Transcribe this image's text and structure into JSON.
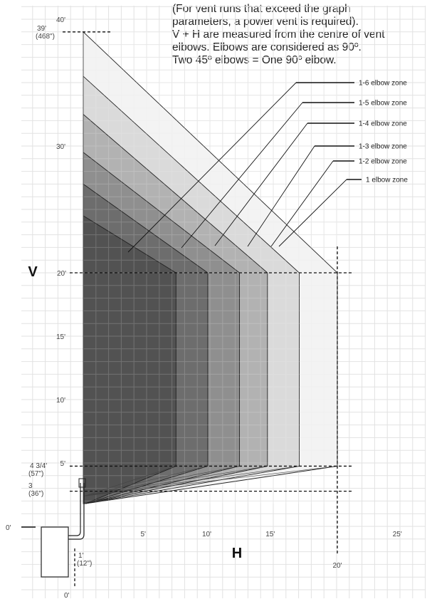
{
  "note_lines": [
    "(For vent runs that exceed the graph",
    "parameters, a power vent is required).",
    "V + H are measured from the centre of vent",
    "elbows. Elbows are considered as 90º.",
    "Two 45º elbows = One 90º elbow."
  ],
  "chart_data": {
    "type": "area",
    "title": "",
    "xlabel": "H",
    "ylabel": "V",
    "xlim": [
      0,
      25
    ],
    "ylim": [
      0,
      40
    ],
    "grid": true,
    "x_ticks": [
      {
        "value": 5,
        "label": "5'"
      },
      {
        "value": 10,
        "label": "10'"
      },
      {
        "value": 15,
        "label": "15'"
      },
      {
        "value": 25,
        "label": "25'"
      }
    ],
    "y_ticks": [
      {
        "value": 5,
        "label": "5'"
      },
      {
        "value": 10,
        "label": "10'"
      },
      {
        "value": 15,
        "label": "15'"
      },
      {
        "value": 20,
        "label": "20'"
      },
      {
        "value": 30,
        "label": "30'"
      },
      {
        "value": 40,
        "label": "40'"
      }
    ],
    "markers": {
      "v_max": {
        "value": 39,
        "label": "39'",
        "sublabel": "(468\")"
      },
      "v_20": {
        "value": 20,
        "label": "20'"
      },
      "v_min_long": {
        "value": 4.75,
        "label": "4 3/4'",
        "sublabel": "(57\")"
      },
      "v_min": {
        "value": 3,
        "label": "3",
        "sublabel": "(36\")"
      },
      "h_max": {
        "value": 20,
        "label": "20'"
      },
      "h_min": {
        "value": 1,
        "label": "1'",
        "sublabel": "(12\")"
      },
      "origin_v": {
        "label": "0'"
      },
      "origin_h": {
        "label": "0'"
      }
    },
    "zones": [
      {
        "name": "1 elbow zone",
        "elbows": 1,
        "v_top": 39,
        "h_max": 20,
        "color": "#efefef"
      },
      {
        "name": "1-2 elbow zone",
        "elbows": 2,
        "v_top": 35.5,
        "h_max": 17,
        "color": "#d2d2d2"
      },
      {
        "name": "1-3 elbow zone",
        "elbows": 3,
        "v_top": 32.5,
        "h_max": 14.5,
        "color": "#a6a6a6"
      },
      {
        "name": "1-4 elbow zone",
        "elbows": 4,
        "v_top": 29.5,
        "h_max": 12.3,
        "color": "#858585"
      },
      {
        "name": "1-5 elbow zone",
        "elbows": 5,
        "v_top": 27,
        "h_max": 9.8,
        "color": "#646464"
      },
      {
        "name": "1-6 elbow zone",
        "elbows": 6,
        "v_top": 24.5,
        "h_max": 7.3,
        "color": "#4a4a4a"
      }
    ]
  }
}
